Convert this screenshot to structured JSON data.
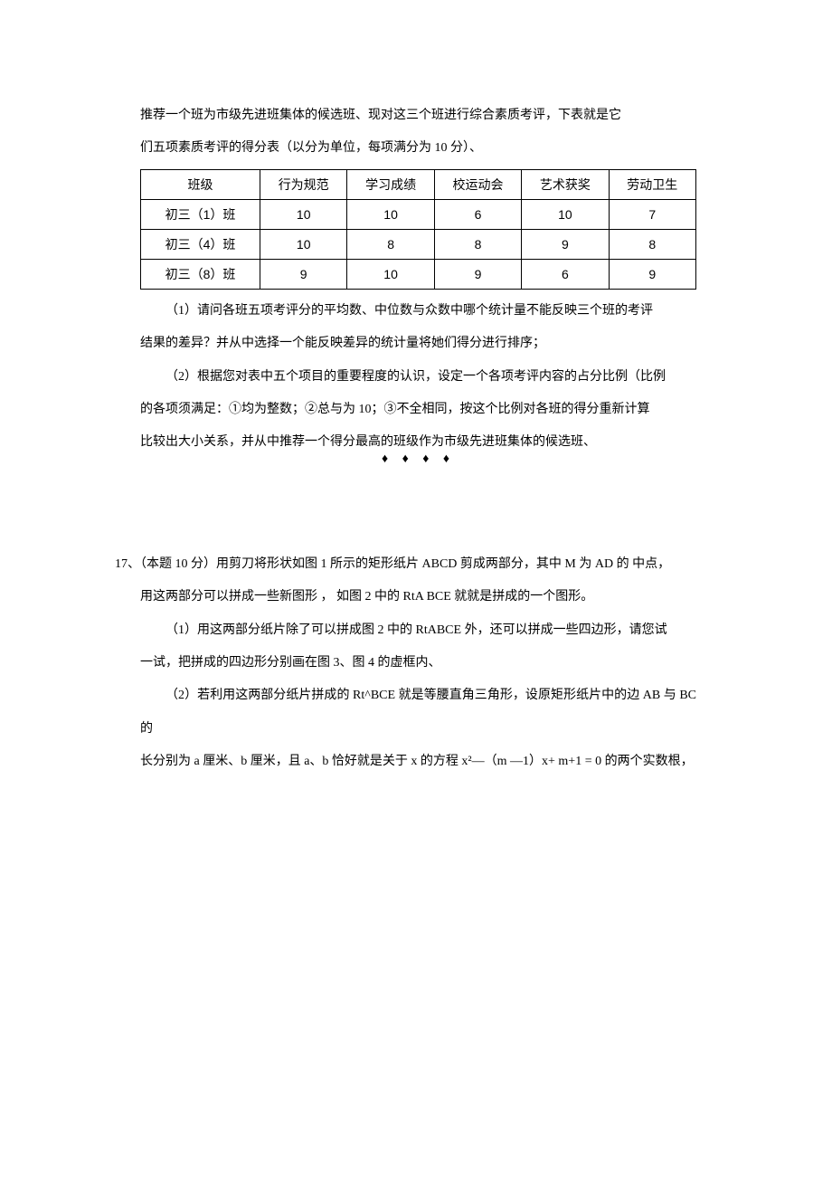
{
  "q16": {
    "intro_l1": "推荐一个班为市级先进班集体的候选班、现对这三个班进行综合素质考评，下表就是它",
    "intro_l2": "们五项素质考评的得分表（以分为单位，每项满分为 10 分）、",
    "table": {
      "headers": [
        "班级",
        "行为规范",
        "学习成绩",
        "校运动会",
        "艺术获奖",
        "劳动卫生"
      ],
      "rows": [
        {
          "label": "初三（1）班",
          "cells": [
            "10",
            "10",
            "6",
            "10",
            "7"
          ]
        },
        {
          "label": "初三（4）班",
          "cells": [
            "10",
            "8",
            "8",
            "9",
            "8"
          ]
        },
        {
          "label": "初三（8）班",
          "cells": [
            "9",
            "10",
            "9",
            "6",
            "9"
          ]
        }
      ]
    },
    "p1_l1": "（1）请问各班五项考评分的平均数、中位数与众数中哪个统计量不能反映三个班的考评",
    "p1_l2": "结果的差异？并从中选择一个能反映差异的统计量将她们得分进行排序；",
    "p2_l1": "（2）根据您对表中五个项目的重要程度的认识，设定一个各项考评内容的占分比例（比例",
    "p2_l2": "的各项须满足：①均为整数；②总与为 10；③不全相同，按这个比例对各班的得分重新计算",
    "p2_l3": "比较出大小关系，并从中推荐一个得分最高的班级作为市级先进班集体的候选班、"
  },
  "diamonds": "♦ ♦ ♦ ♦",
  "q17": {
    "l1": "17、（本题 10 分）用剪刀将形状如图 1 所示的矩形纸片 ABCD 剪成两部分，其中 M 为 AD 的 中点，",
    "l2": "用这两部分可以拼成一些新图形 ， 如图 2 中的 RtA BCE 就就是拼成的一个图形。",
    "l3": "（1）用这两部分纸片除了可以拼成图 2 中的 RtABCE 外，还可以拼成一些四边形，请您试",
    "l4": "一试，把拼成的四边形分别画在图 3、图 4 的虚框内、",
    "l5": "（2）若利用这两部分纸片拼成的 Rt^BCE 就是等腰直角三角形，设原矩形纸片中的边 AB 与 BC 的",
    "l6": "长分别为 a 厘米、b 厘米，且 a、b 恰好就是关于 x 的方程 x²—（m —1）x+ m+1 = 0 的两个实数根，"
  }
}
